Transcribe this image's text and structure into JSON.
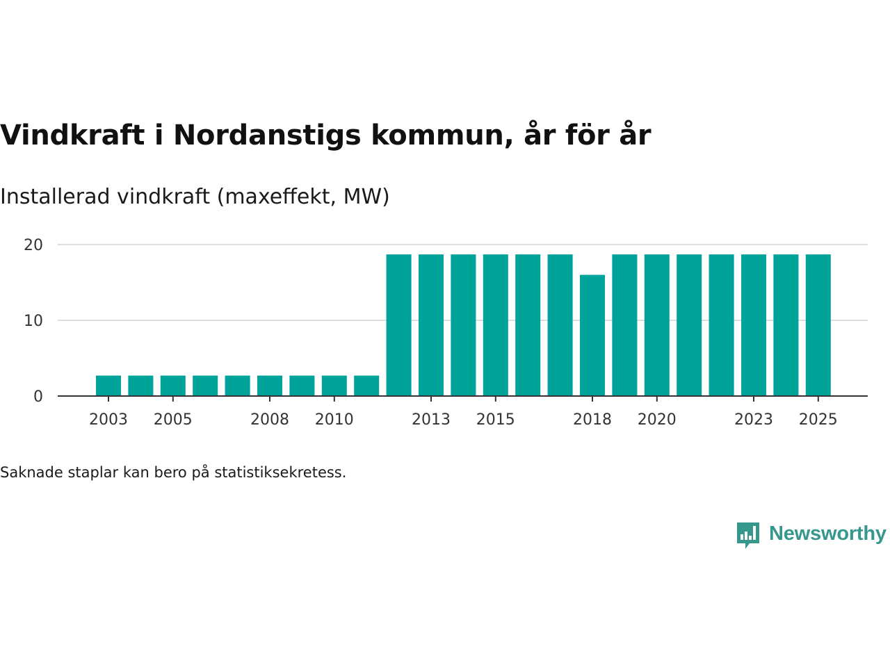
{
  "title": "Vindkraft i Nordanstigs kommun, år för år",
  "subtitle": "Installerad vindkraft (maxeffekt, MW)",
  "footnote": "Saknade staplar kan bero på statistiksekretess.",
  "brand": {
    "name": "Newsworthy",
    "color": "#36978c"
  },
  "colors": {
    "bar": "#00a39a",
    "grid": "#dddddd",
    "axis": "#333333"
  },
  "chart_data": {
    "type": "bar",
    "title": "Vindkraft i Nordanstigs kommun, år för år",
    "ylabel": "Installerad vindkraft (maxeffekt, MW)",
    "xlabel": "",
    "ylim": [
      0,
      20
    ],
    "yticks": [
      0,
      10,
      20
    ],
    "grid": true,
    "categories": [
      "2003",
      "2004",
      "2005",
      "2006",
      "2007",
      "2008",
      "2009",
      "2010",
      "2011",
      "2012",
      "2013",
      "2014",
      "2015",
      "2016",
      "2017",
      "2018",
      "2019",
      "2020",
      "2021",
      "2022",
      "2023",
      "2024",
      "2025"
    ],
    "xtick_labels": [
      "2003",
      "2005",
      "2008",
      "2010",
      "2013",
      "2015",
      "2018",
      "2020",
      "2023",
      "2025"
    ],
    "values": [
      2.7,
      2.7,
      2.7,
      2.7,
      2.7,
      2.7,
      2.7,
      2.7,
      2.7,
      18.7,
      18.7,
      18.7,
      18.7,
      18.7,
      18.7,
      16,
      18.7,
      18.7,
      18.7,
      18.7,
      18.7,
      18.7,
      18.7
    ]
  }
}
